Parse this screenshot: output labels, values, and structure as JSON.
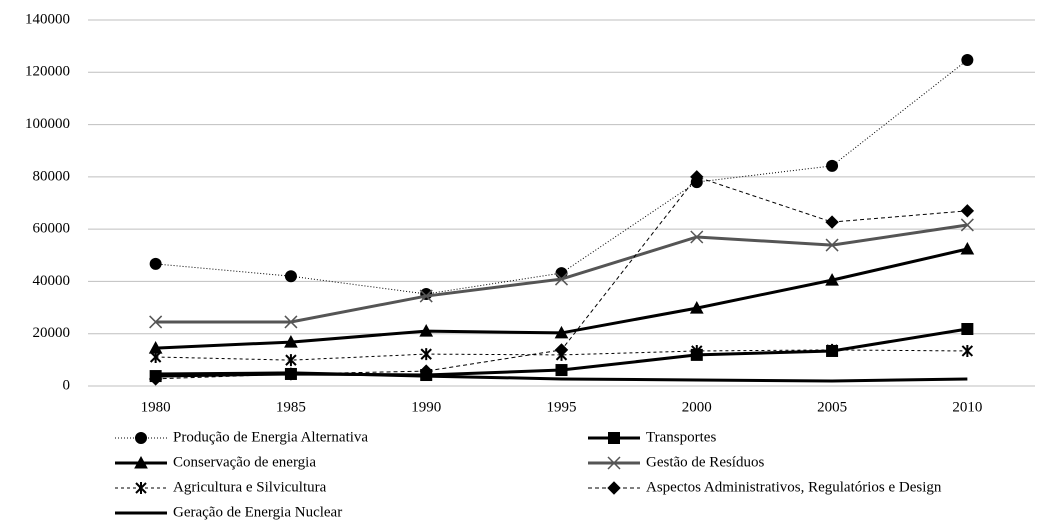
{
  "chart_data": {
    "type": "line",
    "categories": [
      "1980",
      "1985",
      "1990",
      "1995",
      "2000",
      "2005",
      "2010"
    ],
    "ylim": [
      0,
      140000
    ],
    "yticks": [
      0,
      20000,
      40000,
      60000,
      80000,
      100000,
      120000,
      140000
    ],
    "grid": true,
    "legend": "bottom",
    "series": [
      {
        "name": "Produção de Energia Alternativa",
        "color": "#000000",
        "dash": "1 2",
        "width": 1,
        "marker": "circle",
        "values": [
          46700,
          42000,
          35200,
          43200,
          78000,
          84200,
          124700
        ]
      },
      {
        "name": "Transportes",
        "color": "#000000",
        "dash": "none",
        "width": 3,
        "marker": "square",
        "values": [
          3800,
          4600,
          4200,
          6100,
          11900,
          13400,
          21800
        ]
      },
      {
        "name": "Conservação de energia",
        "color": "#000000",
        "dash": "none",
        "width": 3,
        "marker": "triangle",
        "values": [
          14500,
          16800,
          21000,
          20300,
          29800,
          40500,
          52400
        ]
      },
      {
        "name": "Gestão de Resíduos",
        "color": "#555555",
        "dash": "none",
        "width": 3,
        "marker": "x",
        "values": [
          24500,
          24500,
          34400,
          40900,
          57000,
          53900,
          61600
        ]
      },
      {
        "name": "Agricultura e Silvicultura",
        "color": "#000000",
        "dash": "3 3",
        "width": 1,
        "marker": "asterisk",
        "values": [
          11100,
          9900,
          12200,
          11900,
          13400,
          13800,
          13400
        ]
      },
      {
        "name": "Aspectos Administrativos, Regulatórios e Design",
        "color": "#000000",
        "dash": "4 3",
        "width": 1,
        "marker": "diamond",
        "values": [
          2700,
          4600,
          5700,
          13800,
          80000,
          62700,
          67000
        ]
      },
      {
        "name": "Geração de Energia Nuclear",
        "color": "#000000",
        "dash": "none",
        "width": 3,
        "marker": "none",
        "values": [
          4600,
          5000,
          3800,
          2700,
          2300,
          1900,
          2700
        ]
      }
    ]
  }
}
